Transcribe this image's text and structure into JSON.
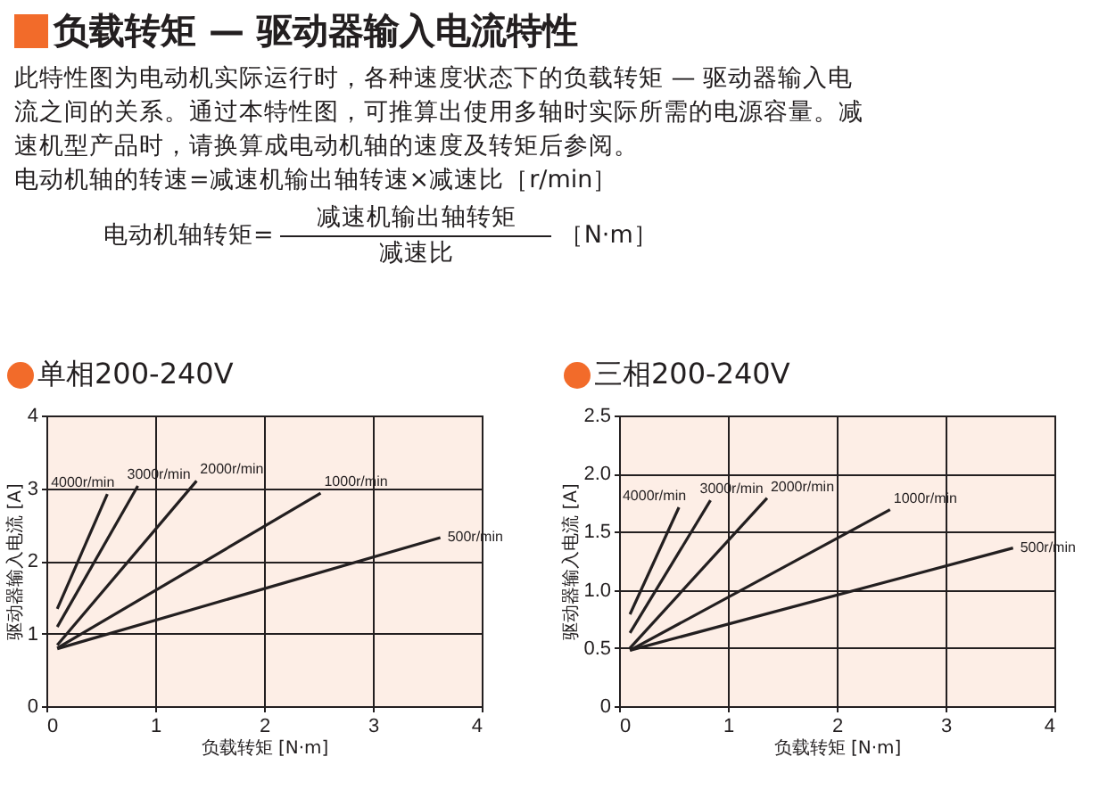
{
  "chart_data": [
    {
      "type": "other",
      "title": "负载转矩 — 驱动器输入电流特性",
      "annotations": [
        "此特性图为电动机实际运行时，各种速度状态下的负载转矩 — 驱动器输入电流之间的关系。通过本特性图，可推算出使用多轴时实际所需的电源容量。减速机型产品时，请换算成电动机轴的速度及转矩后参阅。",
        "电动机轴的转速=减速机输出轴转速×减速比［r/min］",
        "电动机轴转矩=",
        "减速机输出轴转矩",
        "减速比",
        "［N·m］"
      ]
    },
    {
      "type": "line",
      "title": "单相200-240V",
      "xlabel": "负载转矩 [N·m]",
      "ylabel": "驱动器输入电流 [A]",
      "xlim": [
        0,
        4
      ],
      "ylim": [
        0,
        4
      ],
      "xticks": [
        0,
        1,
        2,
        3,
        4
      ],
      "yticks": [
        0,
        1,
        2,
        3,
        4
      ],
      "grid": true,
      "series": [
        {
          "name": "4000r/min",
          "color": "#231f20",
          "x": [
            0.1,
            0.56
          ],
          "values": [
            1.34,
            2.92
          ]
        },
        {
          "name": "3000r/min",
          "color": "#231f20",
          "x": [
            0.1,
            0.84
          ],
          "values": [
            1.09,
            3.03
          ]
        },
        {
          "name": "2000r/min",
          "color": "#231f20",
          "x": [
            0.1,
            1.38
          ],
          "values": [
            0.84,
            3.1
          ]
        },
        {
          "name": "1000r/min",
          "color": "#231f20",
          "x": [
            0.1,
            2.52
          ],
          "values": [
            0.8,
            2.93
          ]
        },
        {
          "name": "500r/min",
          "color": "#231f20",
          "x": [
            0.1,
            3.62
          ],
          "values": [
            0.79,
            2.32
          ]
        }
      ]
    },
    {
      "type": "line",
      "title": "三相200-240V",
      "xlabel": "负载转矩 [N·m]",
      "ylabel": "驱动器输入电流 [A]",
      "xlim": [
        0,
        4
      ],
      "ylim": [
        0,
        2.5
      ],
      "xticks": [
        0,
        1,
        2,
        3,
        4
      ],
      "yticks": [
        0,
        0.5,
        {
          "value": 1,
          "label": "1.0"
        },
        1.5,
        {
          "value": 2,
          "label": "2.0"
        },
        2.5
      ],
      "grid": true,
      "series": [
        {
          "name": "4000r/min",
          "color": "#231f20",
          "x": [
            0.1,
            0.55
          ],
          "values": [
            0.79,
            1.71
          ]
        },
        {
          "name": "3000r/min",
          "color": "#231f20",
          "x": [
            0.1,
            0.84
          ],
          "values": [
            0.63,
            1.77
          ]
        },
        {
          "name": "2000r/min",
          "color": "#231f20",
          "x": [
            0.1,
            1.36
          ],
          "values": [
            0.5,
            1.79
          ]
        },
        {
          "name": "1000r/min",
          "color": "#231f20",
          "x": [
            0.1,
            2.49
          ],
          "values": [
            0.48,
            1.69
          ]
        },
        {
          "name": "500r/min",
          "color": "#231f20",
          "x": [
            0.1,
            3.62
          ],
          "values": [
            0.48,
            1.36
          ]
        }
      ]
    }
  ]
}
